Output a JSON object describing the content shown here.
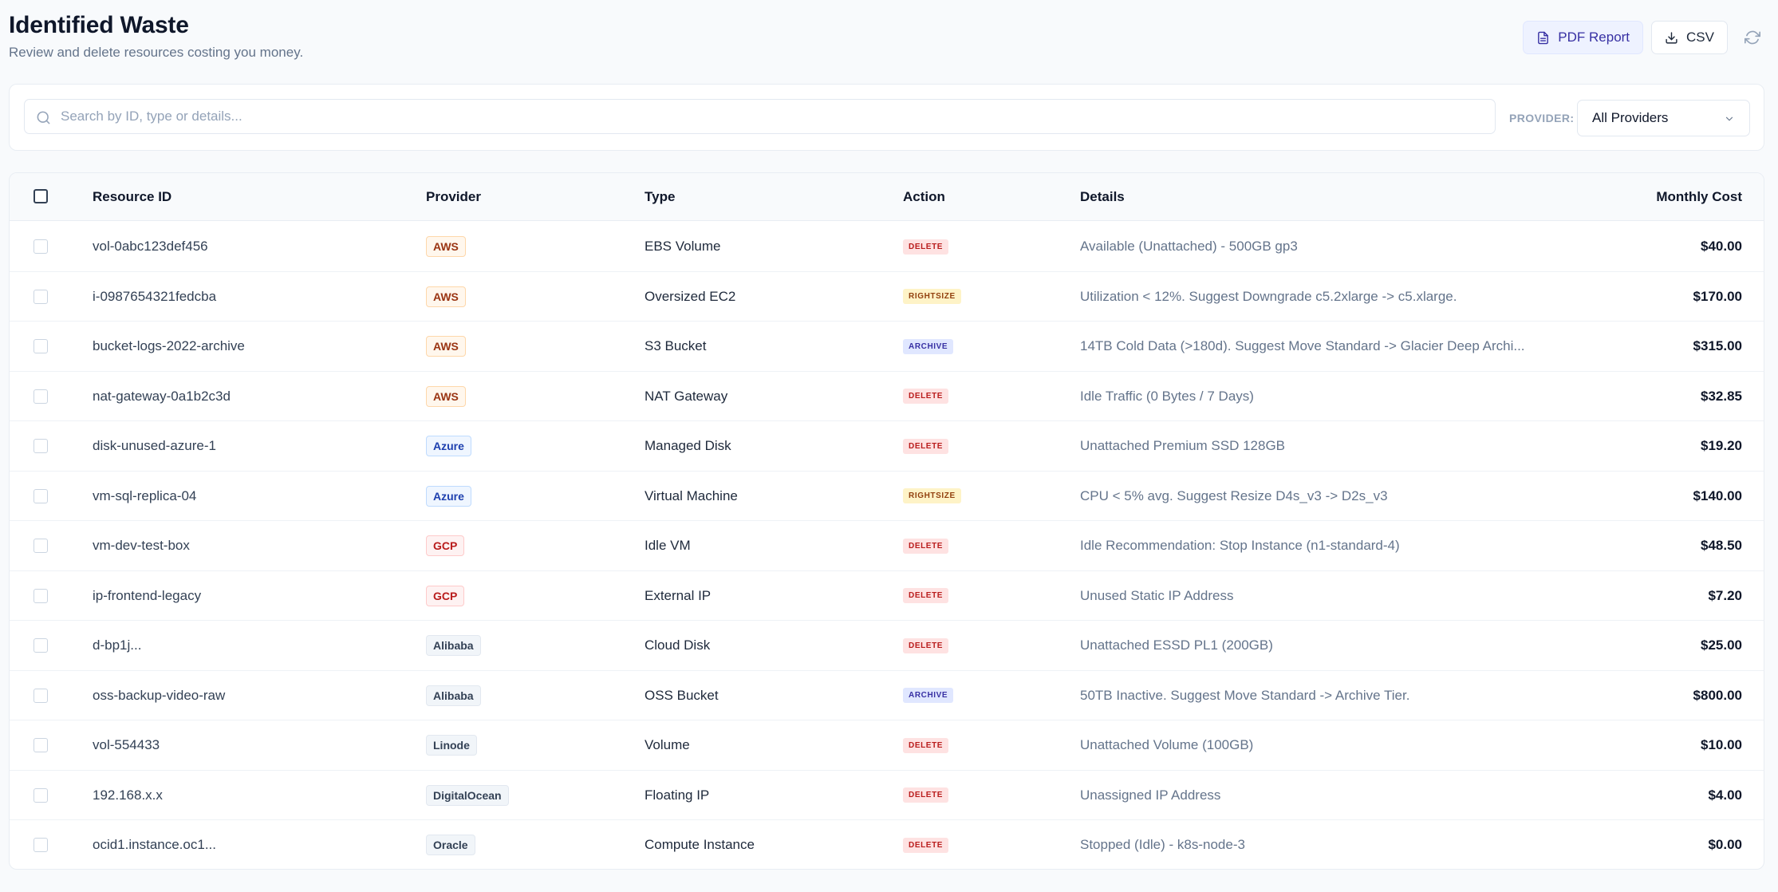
{
  "header": {
    "title": "Identified Waste",
    "subtitle": "Review and delete resources costing you money.",
    "pdf_label": "PDF Report",
    "csv_label": "CSV"
  },
  "filters": {
    "search_placeholder": "Search by ID, type or details...",
    "provider_label": "PROVIDER:",
    "provider_selected": "All Providers"
  },
  "table": {
    "columns": {
      "resource_id": "Resource ID",
      "provider": "Provider",
      "type": "Type",
      "action": "Action",
      "details": "Details",
      "monthly_cost": "Monthly Cost"
    },
    "rows": [
      {
        "id": "vol-0abc123def456",
        "provider": "AWS",
        "provider_style": "aws",
        "type": "EBS Volume",
        "action": "DELETE",
        "action_style": "delete",
        "details": "Available (Unattached) - 500GB gp3",
        "cost": "$40.00"
      },
      {
        "id": "i-0987654321fedcba",
        "provider": "AWS",
        "provider_style": "aws",
        "type": "Oversized EC2",
        "action": "RIGHTSIZE",
        "action_style": "rightsize",
        "details": "Utilization < 12%. Suggest Downgrade c5.2xlarge -> c5.xlarge.",
        "cost": "$170.00"
      },
      {
        "id": "bucket-logs-2022-archive",
        "provider": "AWS",
        "provider_style": "aws",
        "type": "S3 Bucket",
        "action": "ARCHIVE",
        "action_style": "archive",
        "details": "14TB Cold Data (>180d). Suggest Move Standard -> Glacier Deep Archi...",
        "cost": "$315.00"
      },
      {
        "id": "nat-gateway-0a1b2c3d",
        "provider": "AWS",
        "provider_style": "aws",
        "type": "NAT Gateway",
        "action": "DELETE",
        "action_style": "delete",
        "details": "Idle Traffic (0 Bytes / 7 Days)",
        "cost": "$32.85"
      },
      {
        "id": "disk-unused-azure-1",
        "provider": "Azure",
        "provider_style": "azure",
        "type": "Managed Disk",
        "action": "DELETE",
        "action_style": "delete",
        "details": "Unattached Premium SSD 128GB",
        "cost": "$19.20"
      },
      {
        "id": "vm-sql-replica-04",
        "provider": "Azure",
        "provider_style": "azure",
        "type": "Virtual Machine",
        "action": "RIGHTSIZE",
        "action_style": "rightsize",
        "details": "CPU < 5% avg. Suggest Resize D4s_v3 -> D2s_v3",
        "cost": "$140.00"
      },
      {
        "id": "vm-dev-test-box",
        "provider": "GCP",
        "provider_style": "gcp",
        "type": "Idle VM",
        "action": "DELETE",
        "action_style": "delete",
        "details": "Idle Recommendation: Stop Instance (n1-standard-4)",
        "cost": "$48.50"
      },
      {
        "id": "ip-frontend-legacy",
        "provider": "GCP",
        "provider_style": "gcp",
        "type": "External IP",
        "action": "DELETE",
        "action_style": "delete",
        "details": "Unused Static IP Address",
        "cost": "$7.20"
      },
      {
        "id": "d-bp1j...",
        "provider": "Alibaba",
        "provider_style": "gray",
        "type": "Cloud Disk",
        "action": "DELETE",
        "action_style": "delete",
        "details": "Unattached ESSD PL1 (200GB)",
        "cost": "$25.00"
      },
      {
        "id": "oss-backup-video-raw",
        "provider": "Alibaba",
        "provider_style": "gray",
        "type": "OSS Bucket",
        "action": "ARCHIVE",
        "action_style": "archive",
        "details": "50TB Inactive. Suggest Move Standard -> Archive Tier.",
        "cost": "$800.00"
      },
      {
        "id": "vol-554433",
        "provider": "Linode",
        "provider_style": "gray",
        "type": "Volume",
        "action": "DELETE",
        "action_style": "delete",
        "details": "Unattached Volume (100GB)",
        "cost": "$10.00"
      },
      {
        "id": "192.168.x.x",
        "provider": "DigitalOcean",
        "provider_style": "gray",
        "type": "Floating IP",
        "action": "DELETE",
        "action_style": "delete",
        "details": "Unassigned IP Address",
        "cost": "$4.00"
      },
      {
        "id": "ocid1.instance.oc1...",
        "provider": "Oracle",
        "provider_style": "gray",
        "type": "Compute Instance",
        "action": "DELETE",
        "action_style": "delete",
        "details": "Stopped (Idle) - k8s-node-3",
        "cost": "$0.00"
      }
    ]
  },
  "colors": {
    "accent": "#3730a3",
    "aws": "#9a3412",
    "azure": "#1e40af",
    "gcp": "#b91c1c",
    "delete": "#b91c1c",
    "rightsize": "#92400e",
    "archive": "#3730a3"
  },
  "icons": {
    "pdf": "file-text-icon",
    "csv": "download-icon",
    "refresh": "refresh-icon",
    "search": "search-icon",
    "select": "chevron-down-icon"
  }
}
